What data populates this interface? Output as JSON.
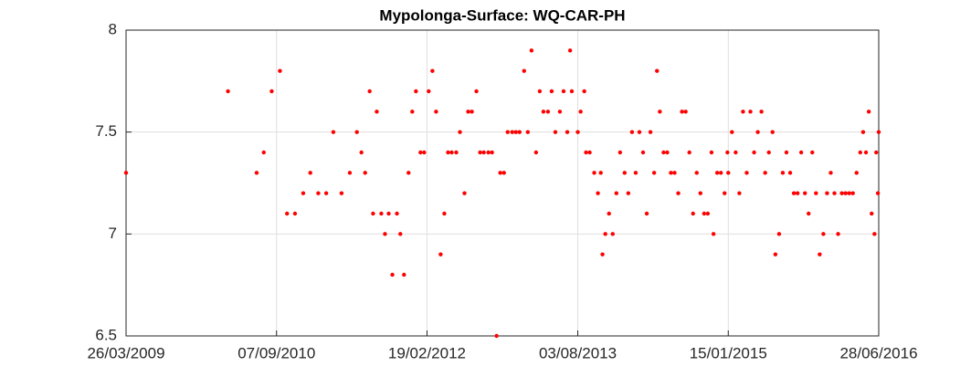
{
  "chart_data": {
    "type": "scatter",
    "title": "Mypolonga-Surface: WQ-CAR-PH",
    "x": [
      "2009-03-26",
      "2010-03-20",
      "2010-06-29",
      "2010-07-24",
      "2010-08-21",
      "2010-09-19",
      "2010-10-14",
      "2010-11-11",
      "2010-12-10",
      "2011-01-04",
      "2011-02-01",
      "2011-03-01",
      "2011-03-26",
      "2011-04-24",
      "2011-05-23",
      "2011-06-17",
      "2011-07-03",
      "2011-07-16",
      "2011-08-01",
      "2011-08-13",
      "2011-08-26",
      "2011-09-11",
      "2011-09-24",
      "2011-10-07",
      "2011-10-20",
      "2011-11-05",
      "2011-11-17",
      "2011-11-30",
      "2011-12-16",
      "2011-12-29",
      "2012-01-11",
      "2012-01-27",
      "2012-02-09",
      "2012-02-25",
      "2012-03-09",
      "2012-03-22",
      "2012-04-07",
      "2012-04-20",
      "2012-05-03",
      "2012-05-16",
      "2012-06-01",
      "2012-06-14",
      "2012-06-30",
      "2012-07-13",
      "2012-07-26",
      "2012-08-11",
      "2012-08-24",
      "2012-09-06",
      "2012-09-22",
      "2012-10-05",
      "2012-10-21",
      "2012-11-03",
      "2012-11-16",
      "2012-11-29",
      "2012-12-15",
      "2012-12-28",
      "2013-01-10",
      "2013-01-26",
      "2013-02-08",
      "2013-02-21",
      "2013-03-09",
      "2013-03-22",
      "2013-04-04",
      "2013-04-20",
      "2013-05-03",
      "2013-05-16",
      "2013-06-01",
      "2013-06-14",
      "2013-06-27",
      "2013-07-07",
      "2013-07-13",
      "2013-08-03",
      "2013-08-13",
      "2013-08-26",
      "2013-09-01",
      "2013-09-14",
      "2013-09-30",
      "2013-10-13",
      "2013-10-23",
      "2013-10-29",
      "2013-11-08",
      "2013-11-21",
      "2013-12-04",
      "2013-12-17",
      "2013-12-30",
      "2014-01-15",
      "2014-01-28",
      "2014-02-10",
      "2014-02-23",
      "2014-03-08",
      "2014-03-21",
      "2014-04-03",
      "2014-04-16",
      "2014-04-29",
      "2014-05-09",
      "2014-05-19",
      "2014-06-01",
      "2014-06-14",
      "2014-06-27",
      "2014-07-10",
      "2014-07-23",
      "2014-08-05",
      "2014-08-18",
      "2014-08-31",
      "2014-09-13",
      "2014-09-26",
      "2014-10-09",
      "2014-10-22",
      "2014-11-04",
      "2014-11-17",
      "2014-11-24",
      "2014-12-07",
      "2014-12-20",
      "2015-01-02",
      "2015-01-12",
      "2015-01-15",
      "2015-01-28",
      "2015-02-10",
      "2015-02-23",
      "2015-03-08",
      "2015-03-21",
      "2015-04-03",
      "2015-04-16",
      "2015-04-29",
      "2015-05-12",
      "2015-05-25",
      "2015-06-07",
      "2015-06-20",
      "2015-06-30",
      "2015-07-13",
      "2015-07-26",
      "2015-08-08",
      "2015-08-21",
      "2015-09-03",
      "2015-09-16",
      "2015-09-29",
      "2015-10-12",
      "2015-10-25",
      "2015-11-07",
      "2015-11-20",
      "2015-12-03",
      "2015-12-16",
      "2015-12-29",
      "2016-01-11",
      "2016-01-24",
      "2016-02-06",
      "2016-02-19",
      "2016-03-03",
      "2016-03-16",
      "2016-03-29",
      "2016-04-11",
      "2016-04-24",
      "2016-05-04",
      "2016-05-14",
      "2016-05-24",
      "2016-06-03",
      "2016-06-13",
      "2016-06-19",
      "2016-06-25",
      "2016-06-28"
    ],
    "series": [
      {
        "color": "#ff0000",
        "values": [
          7.3,
          7.7,
          7.3,
          7.4,
          7.7,
          7.8,
          7.1,
          7.1,
          7.2,
          7.3,
          7.2,
          7.2,
          7.5,
          7.2,
          7.3,
          7.5,
          7.4,
          7.3,
          7.7,
          7.1,
          7.6,
          7.1,
          7.0,
          7.1,
          6.8,
          7.1,
          7.0,
          6.8,
          7.3,
          7.6,
          7.7,
          7.4,
          7.4,
          7.7,
          7.8,
          7.6,
          6.9,
          7.1,
          7.4,
          7.4,
          7.4,
          7.5,
          7.2,
          7.6,
          7.6,
          7.7,
          7.4,
          7.4,
          7.4,
          7.4,
          6.5,
          7.3,
          7.3,
          7.5,
          7.5,
          7.5,
          7.5,
          7.8,
          7.5,
          7.9,
          7.4,
          7.7,
          7.6,
          7.6,
          7.7,
          7.5,
          7.6,
          7.7,
          7.5,
          7.9,
          7.7,
          7.5,
          7.6,
          7.7,
          7.4,
          7.4,
          7.3,
          7.2,
          7.3,
          6.9,
          7.0,
          7.1,
          7.0,
          7.2,
          7.4,
          7.3,
          7.2,
          7.5,
          7.3,
          7.5,
          7.4,
          7.1,
          7.5,
          7.3,
          7.8,
          7.6,
          7.4,
          7.4,
          7.3,
          7.3,
          7.2,
          7.6,
          7.6,
          7.4,
          7.1,
          7.3,
          7.2,
          7.1,
          7.1,
          7.4,
          7.0,
          7.3,
          7.3,
          7.2,
          7.4,
          7.3,
          7.5,
          7.4,
          7.2,
          7.6,
          7.3,
          7.6,
          7.4,
          7.5,
          7.6,
          7.3,
          7.4,
          7.5,
          6.9,
          7.0,
          7.3,
          7.4,
          7.3,
          7.2,
          7.2,
          7.4,
          7.2,
          7.1,
          7.4,
          7.2,
          6.9,
          7.0,
          7.2,
          7.3,
          7.2,
          7.0,
          7.2,
          7.2,
          7.2,
          7.2,
          7.3,
          7.4,
          7.5,
          7.4,
          7.6,
          7.1,
          7.0,
          7.4,
          7.2,
          7.5
        ]
      }
    ],
    "xlim": [
      "2009-03-26",
      "2016-06-28"
    ],
    "xticks": [
      {
        "value": "2009-03-26",
        "label": "26/03/2009"
      },
      {
        "value": "2010-09-07",
        "label": "07/09/2010"
      },
      {
        "value": "2012-02-19",
        "label": "19/02/2012"
      },
      {
        "value": "2013-08-03",
        "label": "03/08/2013"
      },
      {
        "value": "2015-01-15",
        "label": "15/01/2015"
      },
      {
        "value": "2016-06-28",
        "label": "28/06/2016"
      }
    ],
    "ylim": [
      6.5,
      8
    ],
    "yticks": [
      6.5,
      7,
      7.5,
      8
    ],
    "grid": true
  }
}
